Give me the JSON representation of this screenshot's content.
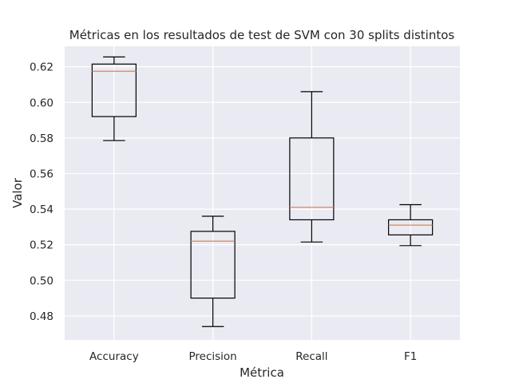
{
  "chart_data": {
    "type": "box",
    "title": "Métricas en los resultados de test de SVM con 30 splits distintos",
    "xlabel": "Métrica",
    "ylabel": "Valor",
    "ylim": [
      0.4665,
      0.6315
    ],
    "yticks": [
      0.48,
      0.5,
      0.52,
      0.54,
      0.56,
      0.58,
      0.6,
      0.62
    ],
    "ytick_labels": [
      "0.48",
      "0.50",
      "0.52",
      "0.54",
      "0.56",
      "0.58",
      "0.60",
      "0.62"
    ],
    "grid": true,
    "background": "#eaeaf2",
    "box_color": "#000000",
    "median_color": "#dd8452",
    "categories": [
      "Accuracy",
      "Precision",
      "Recall",
      "F1"
    ],
    "boxes": [
      {
        "label": "Accuracy",
        "whisker_low": 0.5785,
        "q1": 0.592,
        "median": 0.6175,
        "q3": 0.6215,
        "whisker_high": 0.6255
      },
      {
        "label": "Precision",
        "whisker_low": 0.474,
        "q1": 0.49,
        "median": 0.522,
        "q3": 0.5275,
        "whisker_high": 0.536
      },
      {
        "label": "Recall",
        "whisker_low": 0.5215,
        "q1": 0.534,
        "median": 0.541,
        "q3": 0.58,
        "whisker_high": 0.606
      },
      {
        "label": "F1",
        "whisker_low": 0.5195,
        "q1": 0.5255,
        "median": 0.531,
        "q3": 0.534,
        "whisker_high": 0.5425
      }
    ]
  }
}
